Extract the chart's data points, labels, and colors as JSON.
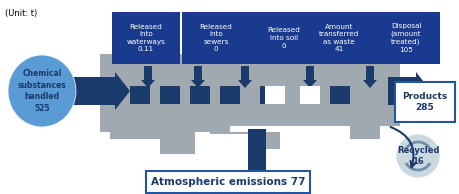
{
  "title": "Atmospheric emissions 77",
  "unit": "(Unit: t)",
  "input_label": "Chemical\nsubstances\nhandled\n525",
  "input_value": 525,
  "recycled_label": "Recycled\n16",
  "products_label": "Products\n285",
  "bottom_boxes": [
    {
      "label": "Released\ninto\nwaterways\n0.11"
    },
    {
      "label": "Released\ninto\nsewers\n0"
    },
    {
      "label": "Released\ninto soil\n0"
    },
    {
      "label": "Amount\ntransferred\nas waste\n41"
    },
    {
      "label": "Disposal\n(amount\ntreated)\n105"
    }
  ],
  "dark_blue": "#1a3a6b",
  "mid_blue": "#2255a4",
  "light_blue_arrow": "#5b9bd5",
  "factory_gray": "#a0a8b0",
  "box_blue": "#1a3a8f",
  "title_border": "#2255a4",
  "recycled_gray": "#b0bec8",
  "white": "#ffffff",
  "light_gray_bg": "#e8edf2"
}
